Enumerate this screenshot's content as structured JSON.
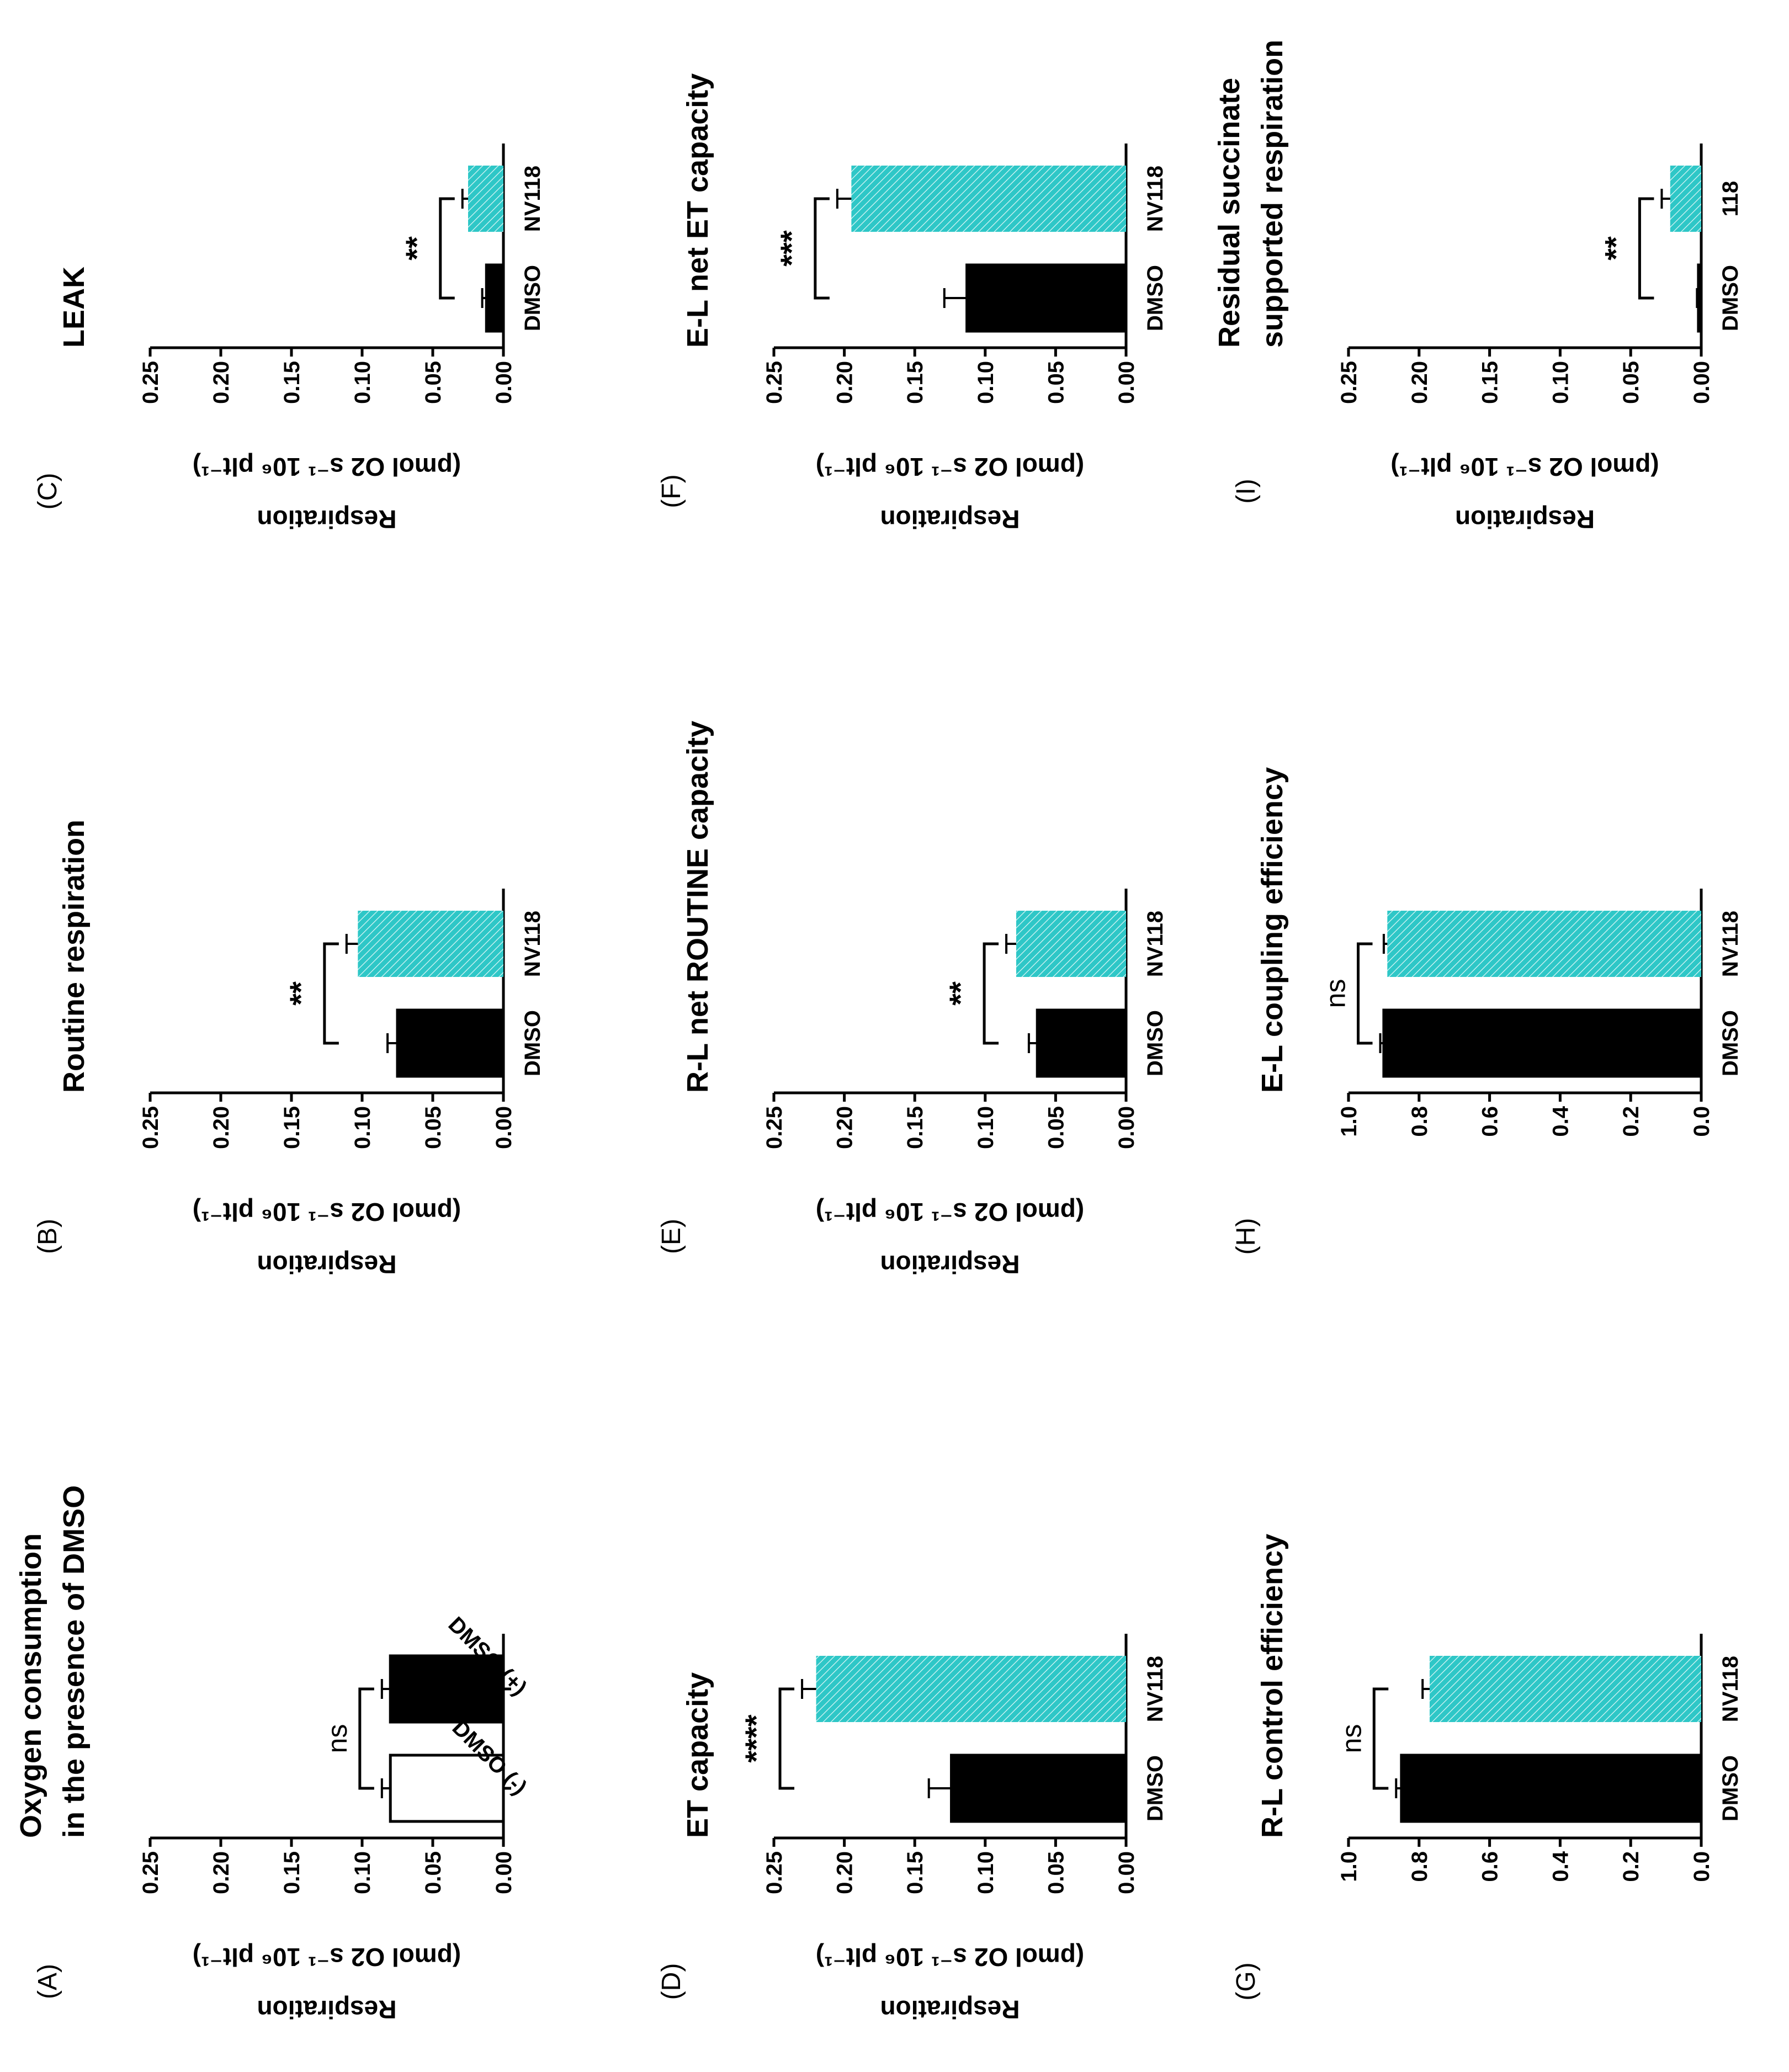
{
  "colors": {
    "dmso": "#000000",
    "nv118": "#2ec7c7",
    "empty": "#ffffff",
    "axis": "#000000"
  },
  "chart_data": [
    {
      "id": "A",
      "panel_label": "(A)",
      "type": "bar",
      "title": [
        "Oxygen consumption",
        "in the presence of DMSO"
      ],
      "ylabel": [
        "Respiration",
        "(pmol O2 s⁻¹ 10⁶ plt⁻¹)"
      ],
      "ylim": [
        0,
        0.25
      ],
      "ticks": [
        "0.00",
        "0.05",
        "0.10",
        "0.15",
        "0.20",
        "0.25"
      ],
      "categories": [
        "DMSO (-)",
        "DMSO (+)"
      ],
      "rotate_categories": true,
      "values": [
        0.08,
        0.08
      ],
      "errors": [
        0.006,
        0.006
      ],
      "fills": [
        "empty",
        "dmso"
      ],
      "significance": "ns"
    },
    {
      "id": "B",
      "panel_label": "(B)",
      "type": "bar",
      "title": [
        "Routine respiration"
      ],
      "ylabel": [
        "Respiration",
        "(pmol O2 s⁻¹ 10⁶ plt⁻¹)"
      ],
      "ylim": [
        0,
        0.25
      ],
      "ticks": [
        "0.00",
        "0.05",
        "0.10",
        "0.15",
        "0.20",
        "0.25"
      ],
      "categories": [
        "DMSO",
        "NV118"
      ],
      "values": [
        0.075,
        0.103
      ],
      "errors": [
        0.007,
        0.008
      ],
      "fills": [
        "dmso",
        "nv118"
      ],
      "significance": "**"
    },
    {
      "id": "C",
      "panel_label": "(C)",
      "type": "bar",
      "title": [
        "LEAK"
      ],
      "ylabel": [
        "Respiration",
        "(pmol O2 s⁻¹ 10⁶ plt⁻¹)"
      ],
      "ylim": [
        0,
        0.25
      ],
      "ticks": [
        "0.00",
        "0.05",
        "0.10",
        "0.15",
        "0.20",
        "0.25"
      ],
      "categories": [
        "DMSO",
        "NV118"
      ],
      "values": [
        0.012,
        0.025
      ],
      "errors": [
        0.003,
        0.004
      ],
      "fills": [
        "dmso",
        "nv118"
      ],
      "significance": "**"
    },
    {
      "id": "D",
      "panel_label": "(D)",
      "type": "bar",
      "title": [
        "ET capacity"
      ],
      "ylabel": [
        "Respiration",
        "(pmol O2 s⁻¹ 10⁶ plt⁻¹)"
      ],
      "ylim": [
        0,
        0.25
      ],
      "ticks": [
        "0.00",
        "0.05",
        "0.10",
        "0.15",
        "0.20",
        "0.25"
      ],
      "categories": [
        "DMSO",
        "NV118"
      ],
      "values": [
        0.124,
        0.22
      ],
      "errors": [
        0.016,
        0.01
      ],
      "fills": [
        "dmso",
        "nv118"
      ],
      "significance": "****"
    },
    {
      "id": "E",
      "panel_label": "(E)",
      "type": "bar",
      "title": [
        "R-L net ROUTINE capacity"
      ],
      "ylabel": [
        "Respiration",
        "(pmol O2 s⁻¹ 10⁶ plt⁻¹)"
      ],
      "ylim": [
        0,
        0.25
      ],
      "ticks": [
        "0.00",
        "0.05",
        "0.10",
        "0.15",
        "0.20",
        "0.25"
      ],
      "categories": [
        "DMSO",
        "NV118"
      ],
      "values": [
        0.063,
        0.078
      ],
      "errors": [
        0.006,
        0.007
      ],
      "fills": [
        "dmso",
        "nv118"
      ],
      "significance": "**"
    },
    {
      "id": "F",
      "panel_label": "(F)",
      "type": "bar",
      "title": [
        "E-L net ET capacity"
      ],
      "ylabel": [
        "Respiration",
        "(pmol O2 s⁻¹ 10⁶ plt⁻¹)"
      ],
      "ylim": [
        0,
        0.25
      ],
      "ticks": [
        "0.00",
        "0.05",
        "0.10",
        "0.15",
        "0.20",
        "0.25"
      ],
      "categories": [
        "DMSO",
        "NV118"
      ],
      "values": [
        0.113,
        0.195
      ],
      "errors": [
        0.016,
        0.01
      ],
      "fills": [
        "dmso",
        "nv118"
      ],
      "significance": "***"
    },
    {
      "id": "G",
      "panel_label": "(G)",
      "type": "bar",
      "title": [
        "R-L control efficiency"
      ],
      "ylabel": [],
      "ylim": [
        0,
        1.0
      ],
      "ticks": [
        "0.0",
        "0.2",
        "0.4",
        "0.6",
        "0.8",
        "1.0"
      ],
      "categories": [
        "DMSO",
        "NV118"
      ],
      "values": [
        0.85,
        0.77
      ],
      "errors": [
        0.015,
        0.02
      ],
      "fills": [
        "dmso",
        "nv118"
      ],
      "significance": "ns"
    },
    {
      "id": "H",
      "panel_label": "(H)",
      "type": "bar",
      "title": [
        "E-L coupling efficiency"
      ],
      "ylabel": [],
      "ylim": [
        0,
        1.0
      ],
      "ticks": [
        "0.0",
        "0.2",
        "0.4",
        "0.6",
        "0.8",
        "1.0"
      ],
      "categories": [
        "DMSO",
        "NV118"
      ],
      "values": [
        0.9,
        0.89
      ],
      "errors": [
        0.01,
        0.01
      ],
      "fills": [
        "dmso",
        "nv118"
      ],
      "significance": "ns"
    },
    {
      "id": "I",
      "panel_label": "(I)",
      "type": "bar",
      "title": [
        "Residual succinate",
        "supported respiration"
      ],
      "ylabel": [
        "Respiration",
        "(pmol O2 s⁻¹ 10⁶ plt⁻¹)"
      ],
      "ylim": [
        0,
        0.25
      ],
      "ticks": [
        "0.00",
        "0.05",
        "0.10",
        "0.15",
        "0.20",
        "0.25"
      ],
      "categories": [
        "DMSO",
        "118"
      ],
      "values": [
        0.002,
        0.022
      ],
      "errors": [
        0.001,
        0.006
      ],
      "fills": [
        "dmso",
        "nv118"
      ],
      "significance": "**"
    }
  ]
}
